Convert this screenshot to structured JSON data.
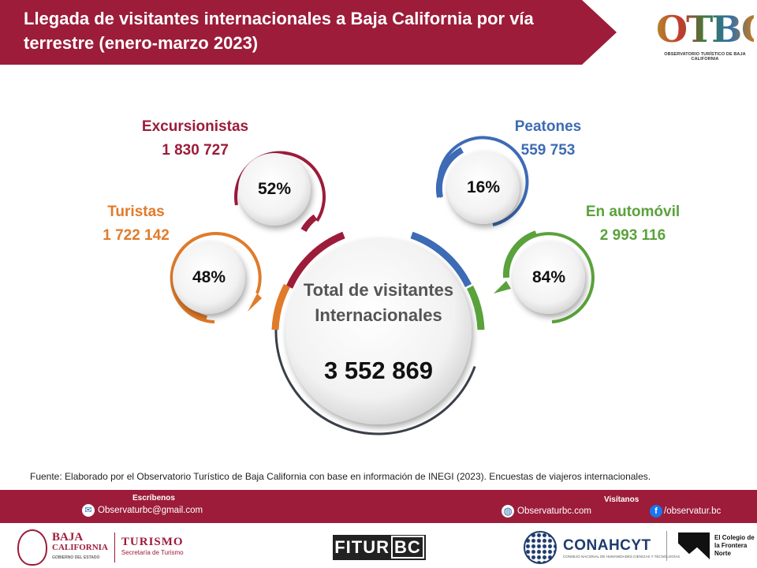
{
  "header": {
    "title": "Llegada de visitantes internacionales a Baja California por vía terrestre (enero-marzo 2023)",
    "logo_text": "OTBC",
    "logo_subtitle": "OBSERVATORIO TURÍSTICO DE BAJA CALIFORNIA"
  },
  "categories": {
    "excursionistas": {
      "label": "Excursionistas",
      "value": "1 830 727",
      "percent": "52%",
      "color": "#9c1c3a"
    },
    "turistas": {
      "label": "Turistas",
      "value": "1 722 142",
      "percent": "48%",
      "color": "#e07b2a"
    },
    "peatones": {
      "label": "Peatones",
      "value": "559 753",
      "percent": "16%",
      "color": "#3d6bb5"
    },
    "automovil": {
      "label": "En automóvil",
      "value": "2 993 116",
      "percent": "84%",
      "color": "#5aa23c"
    }
  },
  "total": {
    "label": "Total de visitantes Internacionales",
    "value": "3 552 869"
  },
  "source": "Fuente: Elaborado por el Observatorio Turístico de Baja California con base en información de INEGI (2023). Encuestas de viajeros internacionales.",
  "footer": {
    "write_label": "Escríbenos",
    "email": "Observaturbc@gmail.com",
    "visit_label": "Visítanos",
    "website": "Observaturbc.com",
    "facebook": "/observatur.bc"
  },
  "logos": {
    "bc_name_1": "BAJA",
    "bc_name_2": "CALIFORNIA",
    "bc_name_3": "GOBIERNO DEL ESTADO",
    "turismo": "TURISMO",
    "turismo_sub": "Secretaría de Turismo",
    "fitur_1": "FITUR",
    "fitur_2": "BC",
    "conahcyt": "CONAHCYT",
    "conahcyt_sub": "CONSEJO NACIONAL DE HUMANIDADES CIENCIAS Y TECNOLOGÍAS",
    "colef": "El Colegio de la Frontera Norte"
  }
}
